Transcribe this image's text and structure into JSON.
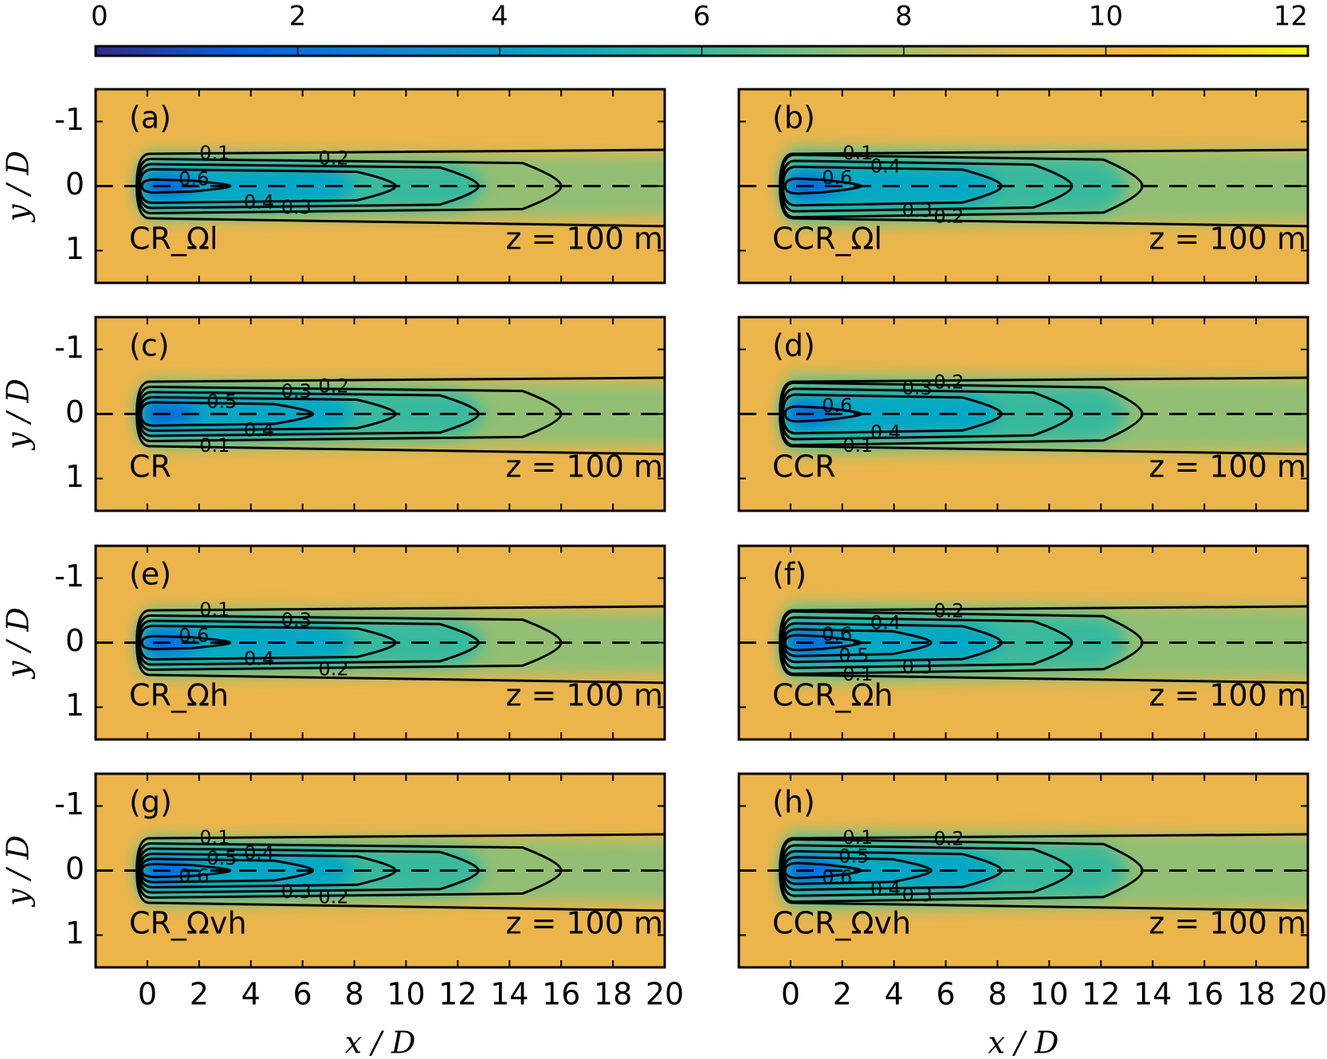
{
  "chart_data": [
    {
      "type": "colorbar",
      "lim": [
        0,
        12
      ],
      "ticks": [
        0,
        2,
        4,
        6,
        8,
        10,
        12
      ],
      "colormap": [
        "#352a87",
        "#0363e1",
        "#1485d4",
        "#06a7c6",
        "#38b99e",
        "#92bf73",
        "#d9ba56",
        "#fcb93a",
        "#f9fb0e"
      ]
    },
    {
      "type": "contour",
      "panel_label": "(a)",
      "case": "CR_Ωl",
      "annotation": "z = 100 m",
      "ylabel": "y / D",
      "xlim": [
        -2,
        20
      ],
      "ylim": [
        -1.5,
        1.5
      ],
      "yaxis_inverted": true,
      "xticks": [
        0,
        2,
        4,
        6,
        8,
        10,
        12,
        14,
        16,
        18,
        20
      ],
      "yticks": [
        -1,
        0,
        1
      ],
      "contour_labels": [
        0.1,
        0.4,
        0.6,
        0.3,
        0.2
      ]
    },
    {
      "type": "contour",
      "panel_label": "(b)",
      "case": "CCR_Ωl",
      "annotation": "z = 100 m",
      "xlim": [
        -2,
        20
      ],
      "ylim": [
        -1.5,
        1.5
      ],
      "yaxis_inverted": true,
      "xticks": [
        0,
        2,
        4,
        6,
        8,
        10,
        12,
        14,
        16,
        18,
        20
      ],
      "yticks": [
        -1,
        0,
        1
      ],
      "contour_labels": [
        0.1,
        0.2,
        0.6,
        0.3,
        0.4
      ]
    },
    {
      "type": "contour",
      "panel_label": "(c)",
      "case": "CR",
      "annotation": "z = 100 m",
      "ylabel": "y / D",
      "xlim": [
        -2,
        20
      ],
      "ylim": [
        -1.5,
        1.5
      ],
      "yaxis_inverted": true,
      "xticks": [
        0,
        2,
        4,
        6,
        8,
        10,
        12,
        14,
        16,
        18,
        20
      ],
      "yticks": [
        -1,
        0,
        1
      ],
      "contour_labels": [
        0.2,
        0.4,
        0.5,
        0.1,
        0.3
      ]
    },
    {
      "type": "contour",
      "panel_label": "(d)",
      "case": "CCR",
      "annotation": "z = 100 m",
      "xlim": [
        -2,
        20
      ],
      "ylim": [
        -1.5,
        1.5
      ],
      "yaxis_inverted": true,
      "xticks": [
        0,
        2,
        4,
        6,
        8,
        10,
        12,
        14,
        16,
        18,
        20
      ],
      "yticks": [
        -1,
        0,
        1
      ],
      "contour_labels": [
        0.2,
        0.4,
        0.6,
        0.1,
        0.3
      ]
    },
    {
      "type": "contour",
      "panel_label": "(e)",
      "case": "CR_Ωh",
      "annotation": "z = 100 m",
      "ylabel": "y / D",
      "xlim": [
        -2,
        20
      ],
      "ylim": [
        -1.5,
        1.5
      ],
      "yaxis_inverted": true,
      "xticks": [
        0,
        2,
        4,
        6,
        8,
        10,
        12,
        14,
        16,
        18,
        20
      ],
      "yticks": [
        -1,
        0,
        1
      ],
      "contour_labels": [
        0.1,
        0.2,
        0.6,
        0.4,
        0.3
      ]
    },
    {
      "type": "contour",
      "panel_label": "(f)",
      "case": "CCR_Ωh",
      "annotation": "z = 100 m",
      "xlim": [
        -2,
        20
      ],
      "ylim": [
        -1.5,
        1.5
      ],
      "yaxis_inverted": true,
      "xticks": [
        0,
        2,
        4,
        6,
        8,
        10,
        12,
        14,
        16,
        18,
        20
      ],
      "yticks": [
        -1,
        0,
        1
      ],
      "contour_labels": [
        0.2,
        0.3,
        0.6,
        0.5,
        0.4,
        0.1
      ]
    },
    {
      "type": "contour",
      "panel_label": "(g)",
      "case": "CR_Ωvh",
      "annotation": "z = 100 m",
      "xlabel": "x / D",
      "ylabel": "y / D",
      "xlim": [
        -2,
        20
      ],
      "ylim": [
        -1.5,
        1.5
      ],
      "yaxis_inverted": true,
      "xticks": [
        0,
        2,
        4,
        6,
        8,
        10,
        12,
        14,
        16,
        18,
        20
      ],
      "yticks": [
        -1,
        0,
        1
      ],
      "contour_labels": [
        0.1,
        0.3,
        0.5,
        0.6,
        0.4,
        0.2
      ]
    },
    {
      "type": "contour",
      "panel_label": "(h)",
      "case": "CCR_Ωvh",
      "annotation": "z = 100 m",
      "xlabel": "x / D",
      "xlim": [
        -2,
        20
      ],
      "ylim": [
        -1.5,
        1.5
      ],
      "yaxis_inverted": true,
      "xticks": [
        0,
        2,
        4,
        6,
        8,
        10,
        12,
        14,
        16,
        18,
        20
      ],
      "yticks": [
        -1,
        0,
        1
      ],
      "contour_labels": [
        0.1,
        0.6,
        0.5,
        0.4,
        0.2,
        0.3
      ]
    }
  ]
}
